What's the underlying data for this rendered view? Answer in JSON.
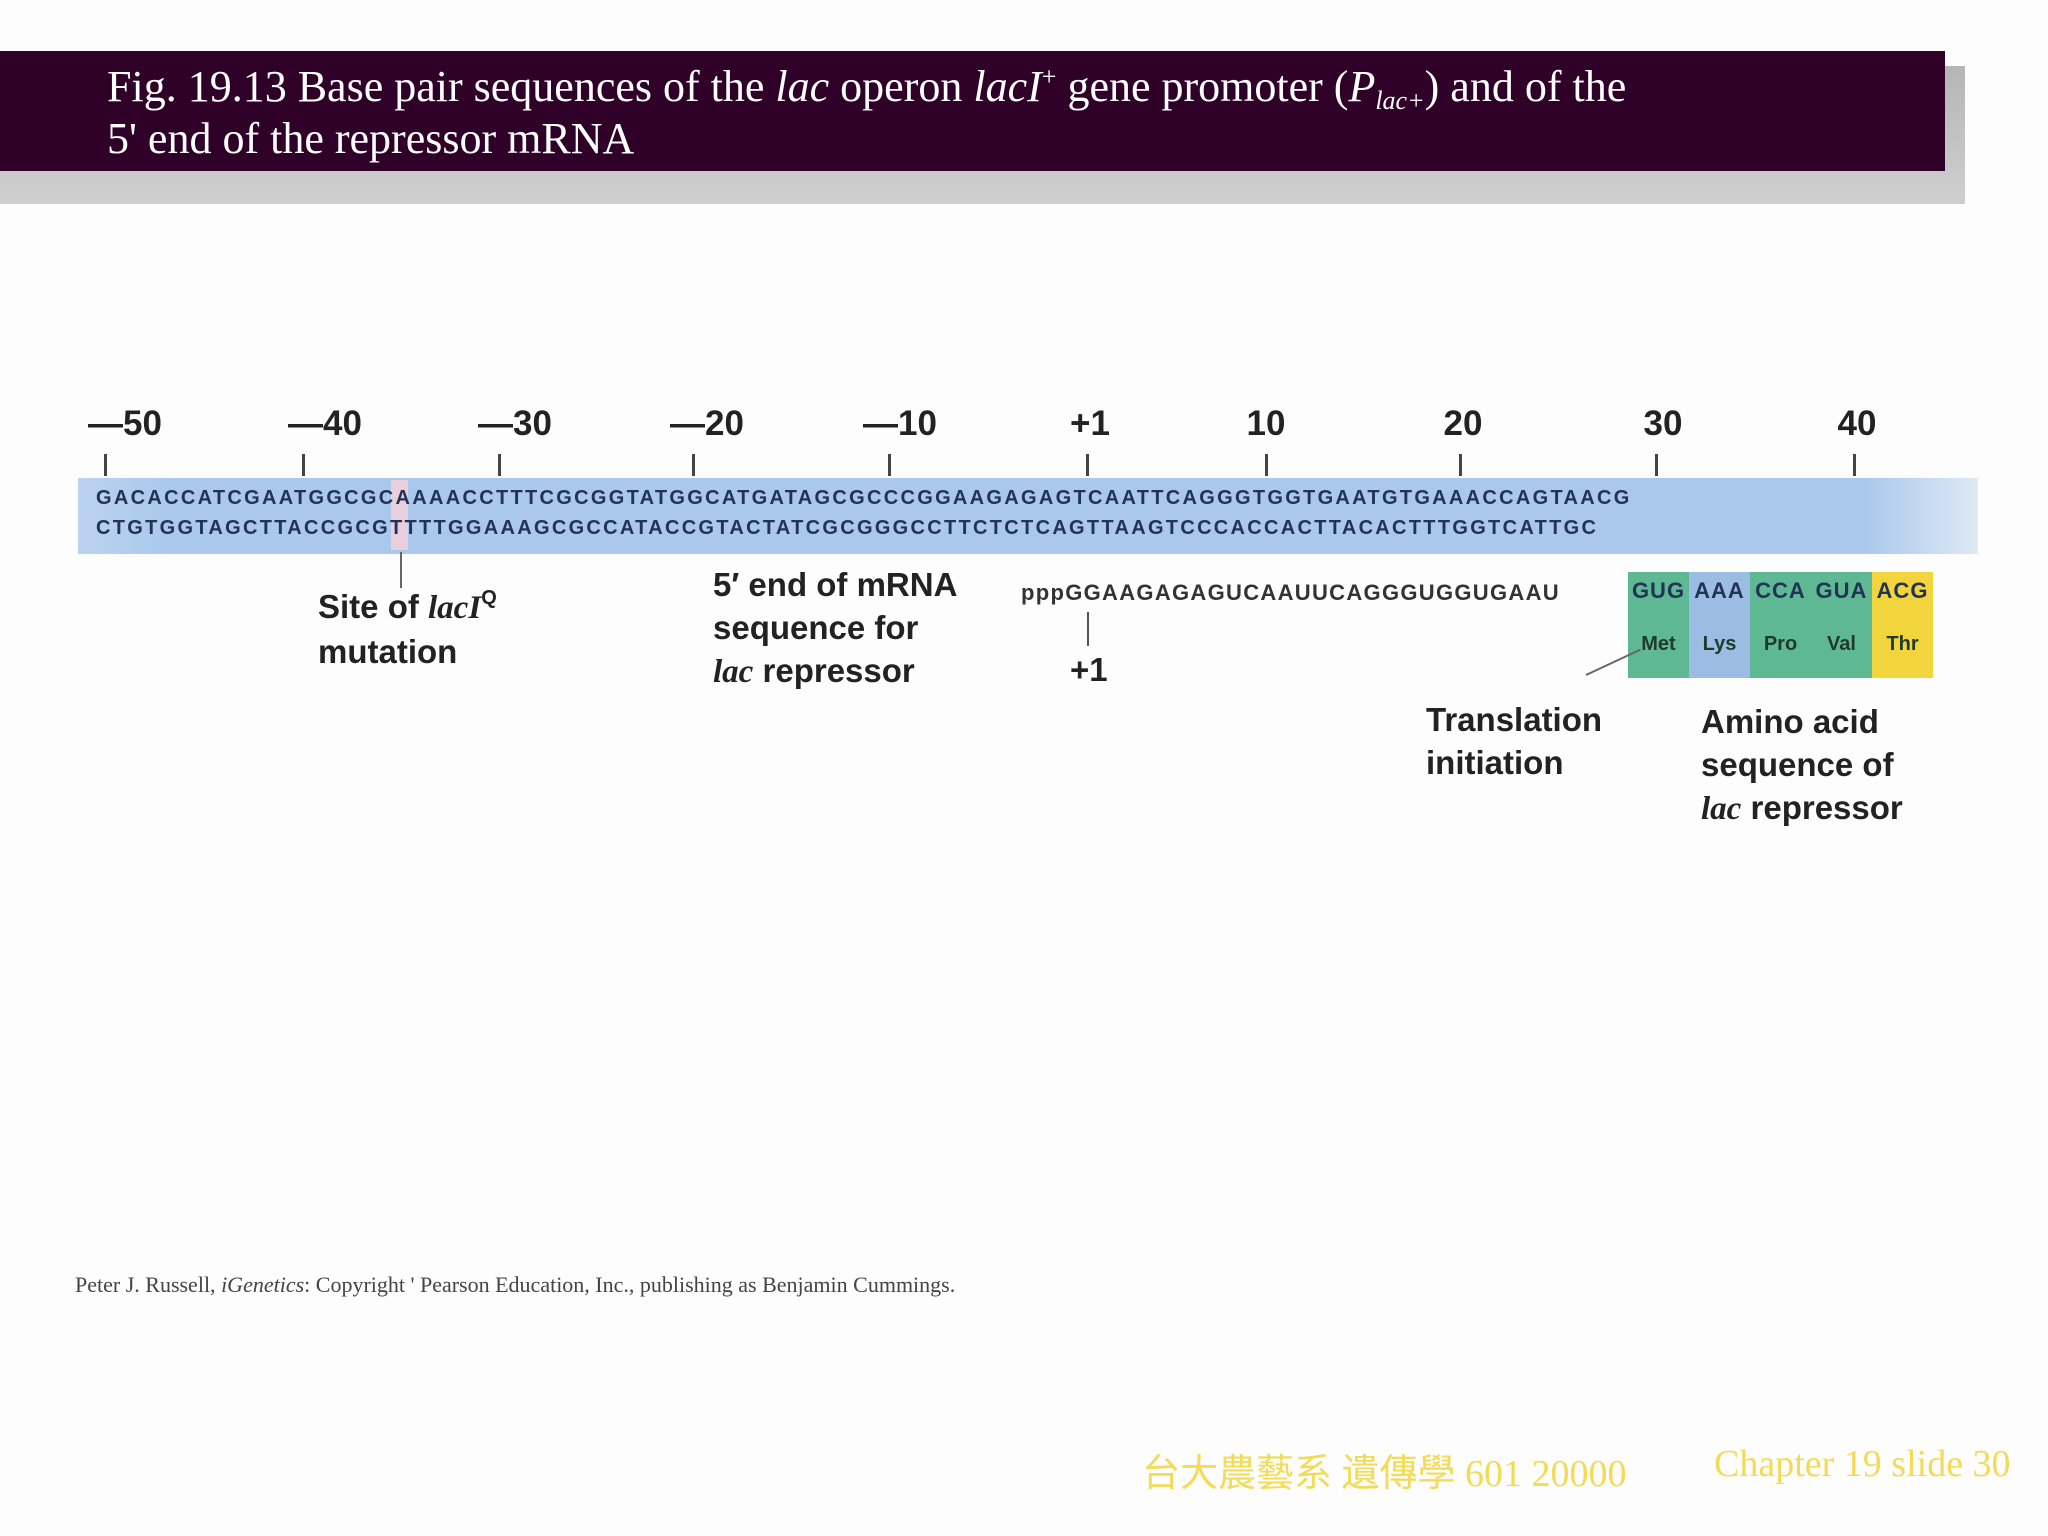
{
  "slide": {
    "title": {
      "prefix": "Fig. 19.13  Base pair sequences of the ",
      "lac": "lac",
      "middle": " operon ",
      "laci": "lacI",
      "laci_sup": "+",
      "after_laci": " gene promoter (",
      "p": "P",
      "p_sub": "lac+",
      "suffix": ") and of the",
      "line2": "5' end of the repressor mRNA"
    },
    "footer_left": "台大農藝系 遺傳學 601 20000",
    "footer_right": "Chapter 19 slide 30",
    "credit": {
      "prefix": "Peter J. Russell, ",
      "book": "iGenetics",
      "suffix": ": Copyright ' Pearson Education, Inc., publishing as Benjamin Cummings."
    }
  },
  "diagram": {
    "positions": [
      "—50",
      "—40",
      "—30",
      "—20",
      "—10",
      "+1",
      "10",
      "20",
      "30",
      "40"
    ],
    "dna_top": "GACACCATCGAATGGCGCAAAACCTTTCGCGGTATGGCATGATAGCGCCCGGAAGAGAGTCAATTCAGGGTGGTGAATGTGAAACCAGTAACG",
    "dna_bottom": "CTGTGGTAGCTTACCGCGTTTTGGAAAGCGCCATACCGTACTATCGCGGGCCTTCTCTCAGTTAAGTCCCACCACTTACACTTTGGTCATTGC",
    "mutation_label": {
      "line1_prefix": "Site of ",
      "gene": "lacI",
      "gene_sup": "Q",
      "line2": "mutation"
    },
    "mrna_label": {
      "line1": "5′ end of mRNA",
      "line2": "sequence for",
      "line3_gene": "lac",
      "line3_suffix": " repressor"
    },
    "mrna_sequence": "pppGGAAGAGAGUCAAUUCAGGGUGGUGAAU",
    "mrna_start": "+1",
    "codons": [
      {
        "codon": "GUG",
        "aa": "Met",
        "color": "#5fb894"
      },
      {
        "codon": "AAA",
        "aa": "Lys",
        "color": "#9bbde4"
      },
      {
        "codon": "CCA",
        "aa": "Pro",
        "color": "#5fb894"
      },
      {
        "codon": "GUA",
        "aa": "Val",
        "color": "#5fb894"
      },
      {
        "codon": "ACG",
        "aa": "Thr",
        "color": "#f2d43c"
      }
    ],
    "translation_label": {
      "line1": "Translation",
      "line2": "initiation"
    },
    "amino_label": {
      "line1": "Amino acid",
      "line2": "sequence of",
      "line3_gene": "lac",
      "line3_suffix": " repressor"
    }
  }
}
